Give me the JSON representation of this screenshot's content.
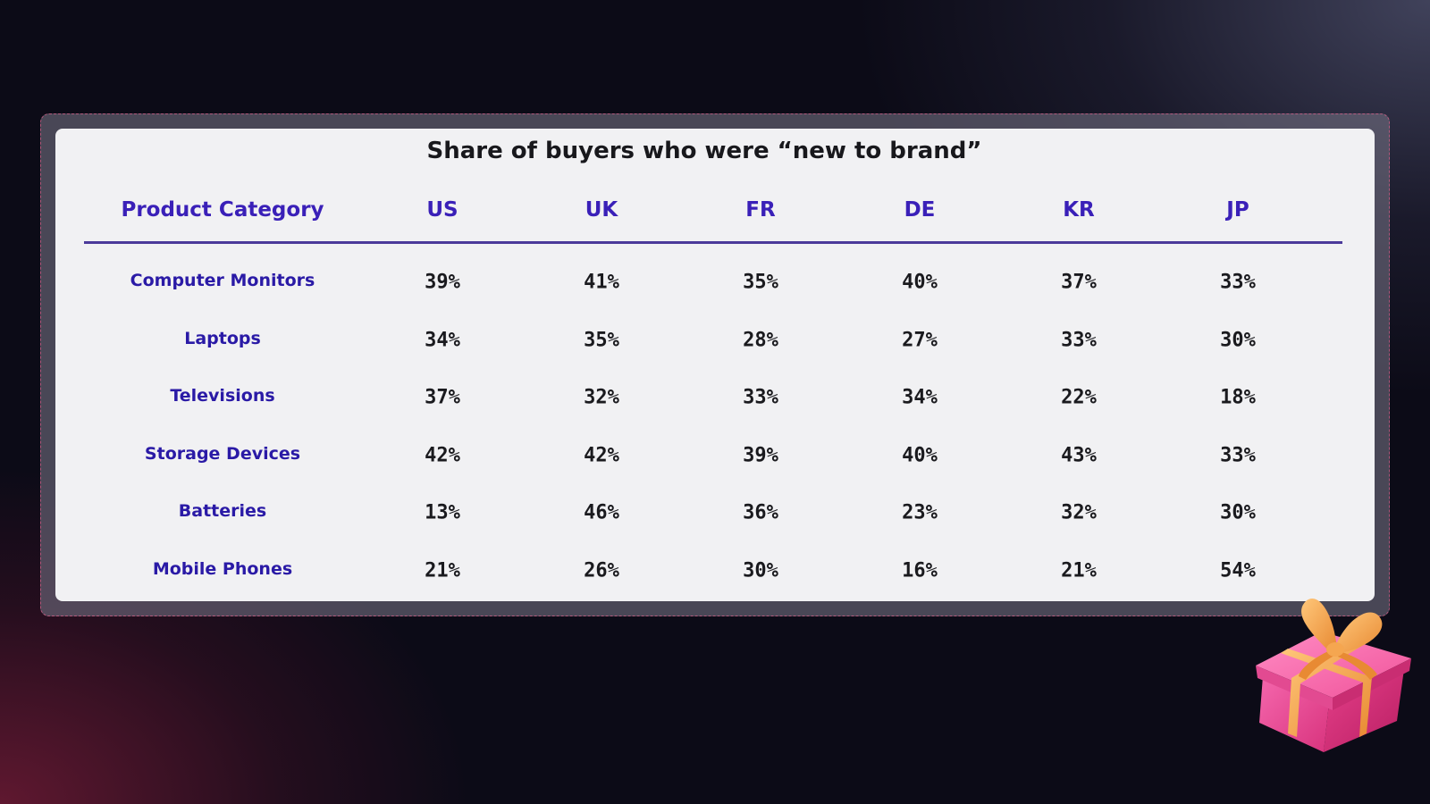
{
  "title": "Share of buyers who were “new to brand”",
  "table": {
    "headers": [
      "Product Category",
      "US",
      "UK",
      "FR",
      "DE",
      "KR",
      "JP"
    ],
    "rows": [
      {
        "category": "Computer Monitors",
        "values": [
          "39%",
          "41%",
          "35%",
          "40%",
          "37%",
          "33%"
        ]
      },
      {
        "category": "Laptops",
        "values": [
          "34%",
          "35%",
          "28%",
          "27%",
          "33%",
          "30%"
        ]
      },
      {
        "category": "Televisions",
        "values": [
          "37%",
          "32%",
          "33%",
          "34%",
          "22%",
          "18%"
        ]
      },
      {
        "category": "Storage Devices",
        "values": [
          "42%",
          "42%",
          "39%",
          "40%",
          "43%",
          "33%"
        ]
      },
      {
        "category": "Batteries",
        "values": [
          "13%",
          "46%",
          "36%",
          "23%",
          "32%",
          "30%"
        ]
      },
      {
        "category": "Mobile Phones",
        "values": [
          "21%",
          "26%",
          "30%",
          "16%",
          "21%",
          "54%"
        ]
      }
    ]
  },
  "icons": {
    "decoration": "gift-box-icon"
  },
  "colors": {
    "header_text": "#3a20b8",
    "category_text": "#2a1aa6",
    "rule": "#4b3a9a",
    "card_background": "#f1f1f3",
    "gift_pink": "#f0539a",
    "gift_ribbon": "#f2a24a"
  }
}
